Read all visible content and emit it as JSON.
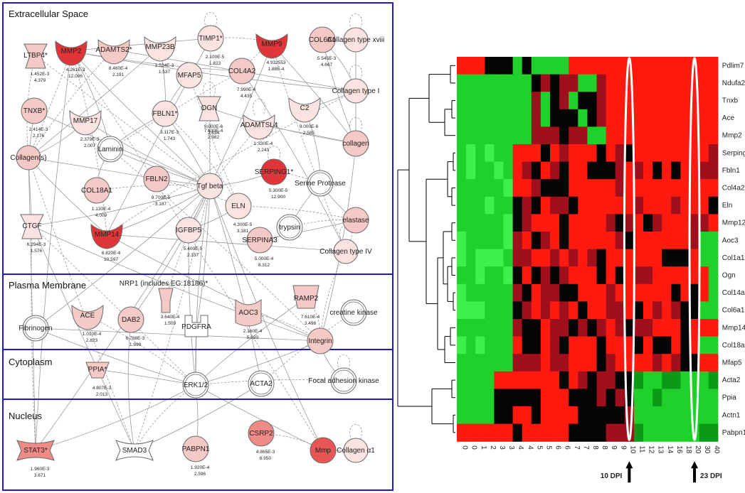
{
  "network": {
    "sections": [
      {
        "name": "Extracellular Space"
      },
      {
        "name": "Plasma Membrane"
      },
      {
        "name": "Cytoplasm"
      },
      {
        "name": "Nucleus"
      }
    ],
    "nodes": [
      {
        "id": "ltbp4",
        "label": "LTBP4*",
        "stat1": "1.452E-3",
        "stat2": "4.379",
        "shape": "tri",
        "color": "#f5c9c6"
      },
      {
        "id": "mmp2",
        "label": "MMP2",
        "stat1": "4.261E-3",
        "stat2": "12.006",
        "shape": "crescent",
        "color": "#e0363a"
      },
      {
        "id": "adamts2",
        "label": "ADAMTS2*",
        "stat1": "8.460E-4",
        "stat2": "2.191",
        "shape": "crescent",
        "color": "#f5c9c6"
      },
      {
        "id": "mmp23b",
        "label": "MMP23B",
        "stat1": "3.524E-3",
        "stat2": "1.537",
        "shape": "crescent",
        "color": "#fbe3e2"
      },
      {
        "id": "timp1",
        "label": "TIMP1*",
        "stat1": "2.100E-5",
        "stat2": "1.823",
        "shape": "circle",
        "color": "#fbe3e2"
      },
      {
        "id": "mmp9",
        "label": "MMP9",
        "stat1": "4.932553",
        "stat2": "1.88E-4",
        "shape": "crescent",
        "color": "#e0363a"
      },
      {
        "id": "col6a1",
        "label": "COL6A1",
        "stat1": "5.545E-3",
        "stat2": "4.667",
        "shape": "circle",
        "color": "#f5c9c6"
      },
      {
        "id": "colxviii",
        "label": "Collagen type xviii",
        "stat1": "",
        "stat2": "",
        "shape": "circle",
        "color": "#fbe3e2"
      },
      {
        "id": "col4a2",
        "label": "COL4A2",
        "stat1": "7.990E-4",
        "stat2": "4.435",
        "shape": "circle",
        "color": "#f5c9c6"
      },
      {
        "id": "mfap5",
        "label": "MFAP5",
        "stat1": "",
        "stat2": "",
        "shape": "circle",
        "color": "#fbe3e2"
      },
      {
        "id": "tnxb",
        "label": "TNXB*",
        "stat1": "2.414E-3",
        "stat2": "2.176",
        "shape": "circle",
        "color": "#f5c9c6"
      },
      {
        "id": "mmp17",
        "label": "MMP17",
        "stat1": "2.379E-3",
        "stat2": "2.007",
        "shape": "crescent",
        "color": "#fbe3e2"
      },
      {
        "id": "fbln1",
        "label": "FBLN1*",
        "stat1": "3.117E-3",
        "stat2": "1.743",
        "shape": "circle",
        "color": "#fbe3e2"
      },
      {
        "id": "ogn",
        "label": "OGN",
        "stat1": "9.000E-6",
        "stat2": "2.634",
        "shape": "tri",
        "color": "#fbe3e2"
      },
      {
        "id": "adamtsl4",
        "label": "ADAMTSL4",
        "stat1": "1.330E-4",
        "stat2": "2.243",
        "shape": "crescent",
        "color": "#fbe3e2"
      },
      {
        "id": "c2",
        "label": "C2",
        "stat1": "9.000E-6",
        "stat2": "2.585",
        "shape": "crescent",
        "color": "#fbe3e2"
      },
      {
        "id": "coltypei",
        "label": "Collagen type I",
        "stat1": "",
        "stat2": "",
        "shape": "circle",
        "color": "#fbe3e2"
      },
      {
        "id": "ogn2",
        "label": "",
        "stat1": "7.630E-4",
        "stat2": "2.982",
        "shape": "none",
        "color": "#ffffff"
      },
      {
        "id": "collagens",
        "label": "Collagen(s)",
        "stat1": "",
        "stat2": "",
        "shape": "circle",
        "color": "#f5c9c6"
      },
      {
        "id": "laminin",
        "label": "Laminin",
        "stat1": "",
        "stat2": "",
        "shape": "circle",
        "color": "#ffffff"
      },
      {
        "id": "collagen",
        "label": "collagen",
        "stat1": "",
        "stat2": "",
        "shape": "circle",
        "color": "#f5c9c6"
      },
      {
        "id": "col18a1",
        "label": "COL18A1",
        "stat1": "1.130E-4",
        "stat2": "4.009",
        "shape": "circle",
        "color": "#f5c9c6"
      },
      {
        "id": "fbln2",
        "label": "FBLN2",
        "stat1": "9.700E-5",
        "stat2": "3.187",
        "shape": "circle",
        "color": "#f5c9c6"
      },
      {
        "id": "tgfbeta",
        "label": "Tgf beta",
        "stat1": "",
        "stat2": "",
        "shape": "circle",
        "color": "#fbe3e2"
      },
      {
        "id": "serping1",
        "label": "SERPING1*",
        "stat1": "5.300E-5",
        "stat2": "12.900",
        "shape": "circle",
        "color": "#e0363a"
      },
      {
        "id": "serprot",
        "label": "Serine Protease",
        "stat1": "",
        "stat2": "",
        "shape": "circle",
        "color": "#ffffff"
      },
      {
        "id": "eln",
        "label": "ELN",
        "stat1": "4.300E-5",
        "stat2": "3.181",
        "shape": "circle",
        "color": "#fbe3e2"
      },
      {
        "id": "ctgf",
        "label": "CTGF",
        "stat1": "6.294E-3",
        "stat2": "1.576",
        "shape": "tri",
        "color": "#fbe3e2"
      },
      {
        "id": "mmp14",
        "label": "MMP14",
        "stat1": "6.820E-4",
        "stat2": "10.597",
        "shape": "crescent",
        "color": "#e0363a"
      },
      {
        "id": "igfbp5",
        "label": "IGFBP5",
        "stat1": "5.400E-5",
        "stat2": "2.337",
        "shape": "circle",
        "color": "#fbe3e2"
      },
      {
        "id": "trypsin",
        "label": "trypsin",
        "stat1": "",
        "stat2": "",
        "shape": "circle",
        "color": "#ffffff"
      },
      {
        "id": "elastase",
        "label": "elastase",
        "stat1": "",
        "stat2": "",
        "shape": "circle",
        "color": "#f5c9c6"
      },
      {
        "id": "serpina3",
        "label": "SERPINA3",
        "stat1": "5.000E-4",
        "stat2": "8.312",
        "shape": "circle",
        "color": "#f5c9c6"
      },
      {
        "id": "coltypeiv",
        "label": "Collagen type IV",
        "stat1": "",
        "stat2": "",
        "shape": "circle",
        "color": "#fbe3e2"
      },
      {
        "id": "nrp1",
        "label": "NRP1 (includes EG:18186)*",
        "stat1": "",
        "stat2": "",
        "shape": "none",
        "color": "#ffffff"
      },
      {
        "id": "ramp2",
        "label": "RAMP2",
        "stat1": "7.610E-4",
        "stat2": "3.498",
        "shape": "cup",
        "color": "#f5c9c6"
      },
      {
        "id": "fibrinogen",
        "label": "Fibrinogen",
        "stat1": "",
        "stat2": "",
        "shape": "circle",
        "color": "#ffffff"
      },
      {
        "id": "ace",
        "label": "ACE",
        "stat1": "1.010E-4",
        "stat2": "2.823",
        "shape": "crescent",
        "color": "#f5c9c6"
      },
      {
        "id": "dab2",
        "label": "DAB2",
        "stat1": "6.788E-3",
        "stat2": "1.998",
        "shape": "circle",
        "color": "#f5c9c6"
      },
      {
        "id": "nrp1node",
        "label": "",
        "stat1": "3.640E-4",
        "stat2": "1.509",
        "shape": "nrp",
        "color": "#f5c9c6"
      },
      {
        "id": "pdgfra",
        "label": "PDGFRA",
        "stat1": "",
        "stat2": "",
        "shape": "pdg",
        "color": "#ffffff"
      },
      {
        "id": "aoc3",
        "label": "AOC3",
        "stat1": "2.160E-4",
        "stat2": "5.020",
        "shape": "aoc",
        "color": "#f5c9c6"
      },
      {
        "id": "integrin",
        "label": "Integrin",
        "stat1": "",
        "stat2": "",
        "shape": "circle",
        "color": "#f5c9c6"
      },
      {
        "id": "ck",
        "label": "creatine kinase",
        "stat1": "",
        "stat2": "",
        "shape": "circle",
        "color": "#ffffff"
      },
      {
        "id": "ppia",
        "label": "PPIA*",
        "stat1": "4.807E-3",
        "stat2": "2.013",
        "shape": "ppia",
        "color": "#f5c9c6"
      },
      {
        "id": "erk",
        "label": "ERK1/2",
        "stat1": "",
        "stat2": "",
        "shape": "circle",
        "color": "#ffffff"
      },
      {
        "id": "acta2",
        "label": "ACTA2",
        "stat1": "",
        "stat2": "",
        "shape": "circle",
        "color": "#ffffff"
      },
      {
        "id": "fak",
        "label": "Focal adhesion kinase",
        "stat1": "",
        "stat2": "",
        "shape": "circle",
        "color": "#ffffff"
      },
      {
        "id": "stat3",
        "label": "STAT3*",
        "stat1": "1.960E-3",
        "stat2": "3.671",
        "shape": "stat",
        "color": "#f08a86"
      },
      {
        "id": "smad3",
        "label": "SMAD3",
        "stat1": "",
        "stat2": "",
        "shape": "smad",
        "color": "#ffffff"
      },
      {
        "id": "pabpn1",
        "label": "PABPN1",
        "stat1": "1.920E-4",
        "stat2": "2.596",
        "shape": "circle",
        "color": "#f5c9c6"
      },
      {
        "id": "csrp2",
        "label": "CSRP2",
        "stat1": "4.865E-3",
        "stat2": "6.950",
        "shape": "circle",
        "color": "#f08a86"
      },
      {
        "id": "mmp",
        "label": "Mmp",
        "stat1": "",
        "stat2": "",
        "shape": "circle",
        "color": "#e85555"
      },
      {
        "id": "colalpha",
        "label": "Collagen α1",
        "stat1": "",
        "stat2": "",
        "shape": "circle",
        "color": "#fbe3e2"
      }
    ]
  },
  "heatmap": {
    "genes": [
      "Pdlim7",
      "Ndufa2",
      "Tnxb",
      "Ace",
      "Mmp2",
      "Serping1",
      "Fbln1",
      "Col4a2",
      "Eln",
      "Mmp12",
      "Aoc3",
      "Col1a1",
      "Ogn",
      "Col14a1",
      "Col6a1",
      "Mmp14",
      "Col18a1",
      "Mfap5",
      "Acta2",
      "Ppia",
      "Actn1",
      "Pabpn1"
    ],
    "timepoints": [
      "0",
      "0",
      "1",
      "2",
      "3",
      "3",
      "4",
      "4",
      "5",
      "5",
      "6",
      "6",
      "7",
      "7",
      "8",
      "8",
      "9",
      "9",
      "10",
      "11",
      "12",
      "13",
      "14",
      "16",
      "18",
      "20",
      "30",
      "40"
    ],
    "markers": [
      {
        "label": "10 DPI"
      },
      {
        "label": "23 DPI"
      }
    ],
    "colors": {
      "red": "#ff1a10",
      "darkred": "#a0101c",
      "black": "#050505",
      "green": "#1fd12a",
      "darkgreen": "#0a9a17",
      "lightgreen": "#3ff04a"
    }
  }
}
